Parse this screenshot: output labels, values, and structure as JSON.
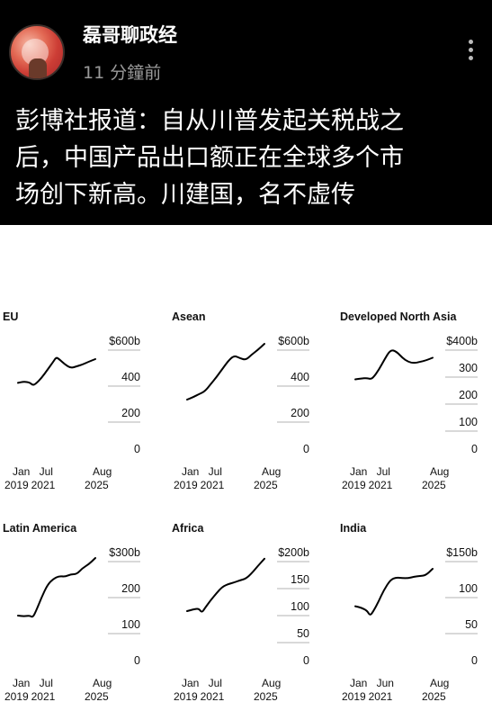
{
  "post": {
    "author": "磊哥聊政经",
    "time": "11 分鐘前",
    "text_lines": [
      "彭博社报道：自从川普发起关税战之",
      "后，中国产品出口额正在全球多个市",
      "场创下新高。川建国，名不虚传"
    ]
  },
  "chart_data": [
    {
      "type": "line",
      "title": "EU",
      "y_ticks": [
        "$600b",
        "400",
        "200",
        "0"
      ],
      "ylim": [
        0,
        600
      ],
      "x_ticks": [
        [
          "Jan",
          "2019"
        ],
        [
          "Jul",
          "2021"
        ],
        [
          "Aug",
          "2025"
        ]
      ],
      "x": [
        "2019-01",
        "2019-07",
        "2020-01",
        "2020-04",
        "2020-07",
        "2021-01",
        "2021-07",
        "2022-01",
        "2022-04",
        "2022-07",
        "2023-01",
        "2023-07",
        "2024-01",
        "2024-07",
        "2025-01",
        "2025-08"
      ],
      "values": [
        378,
        385,
        380,
        365,
        372,
        405,
        450,
        495,
        520,
        510,
        480,
        460,
        470,
        480,
        495,
        510
      ]
    },
    {
      "type": "line",
      "title": "Asean",
      "y_ticks": [
        "$600b",
        "400",
        "200",
        "0"
      ],
      "ylim": [
        0,
        600
      ],
      "x_ticks": [
        [
          "Jan",
          "2019"
        ],
        [
          "Jul",
          "2021"
        ],
        [
          "Aug",
          "2025"
        ]
      ],
      "x": [
        "2019-01",
        "2019-07",
        "2020-01",
        "2020-07",
        "2021-01",
        "2021-07",
        "2022-01",
        "2022-07",
        "2023-01",
        "2023-07",
        "2024-01",
        "2024-07",
        "2025-01",
        "2025-08"
      ],
      "values": [
        285,
        298,
        315,
        330,
        370,
        410,
        455,
        500,
        530,
        515,
        505,
        535,
        560,
        595
      ]
    },
    {
      "type": "line",
      "title": "Developed North Asia",
      "y_ticks": [
        "$400b",
        "300",
        "200",
        "100",
        "0"
      ],
      "ylim": [
        0,
        400
      ],
      "x_ticks": [
        [
          "Jan",
          "2019"
        ],
        [
          "Jul",
          "2021"
        ],
        [
          "Aug",
          "2025"
        ]
      ],
      "x": [
        "2019-01",
        "2019-07",
        "2020-01",
        "2020-04",
        "2020-07",
        "2021-01",
        "2021-07",
        "2022-01",
        "2022-07",
        "2023-01",
        "2023-07",
        "2024-01",
        "2024-07",
        "2025-01",
        "2025-08"
      ],
      "values": [
        265,
        268,
        270,
        266,
        270,
        300,
        340,
        375,
        368,
        345,
        330,
        325,
        330,
        335,
        345
      ]
    },
    {
      "type": "line",
      "title": "Latin America",
      "y_ticks": [
        "$300b",
        "200",
        "100",
        "0"
      ],
      "ylim": [
        0,
        300
      ],
      "x_ticks": [
        [
          "Jan",
          "2019"
        ],
        [
          "Jul",
          "2021"
        ],
        [
          "Aug",
          "2025"
        ]
      ],
      "x": [
        "2019-01",
        "2019-07",
        "2020-01",
        "2020-04",
        "2020-07",
        "2021-01",
        "2021-07",
        "2022-01",
        "2022-07",
        "2023-01",
        "2023-07",
        "2024-01",
        "2024-07",
        "2025-01",
        "2025-08"
      ],
      "values": [
        130,
        128,
        130,
        125,
        140,
        180,
        215,
        232,
        240,
        238,
        245,
        245,
        262,
        272,
        290
      ]
    },
    {
      "type": "line",
      "title": "Africa",
      "y_ticks": [
        "$200b",
        "150",
        "100",
        "50",
        "0"
      ],
      "ylim": [
        0,
        200
      ],
      "x_ticks": [
        [
          "Jan",
          "2019"
        ],
        [
          "Jul",
          "2021"
        ],
        [
          "Aug",
          "2025"
        ]
      ],
      "x": [
        "2019-01",
        "2019-07",
        "2020-01",
        "2020-04",
        "2020-07",
        "2021-01",
        "2021-07",
        "2022-01",
        "2022-07",
        "2023-01",
        "2023-07",
        "2024-01",
        "2024-07",
        "2025-01",
        "2025-08"
      ],
      "values": [
        95,
        98,
        100,
        92,
        100,
        115,
        128,
        140,
        145,
        148,
        152,
        155,
        165,
        178,
        192
      ]
    },
    {
      "type": "line",
      "title": "India",
      "y_ticks": [
        "$150b",
        "100",
        "50",
        "0"
      ],
      "ylim": [
        0,
        150
      ],
      "x_ticks": [
        [
          "Jan",
          "2019"
        ],
        [
          "Jun",
          "2021"
        ],
        [
          "Aug",
          "2025"
        ]
      ],
      "x": [
        "2019-01",
        "2019-07",
        "2020-01",
        "2020-04",
        "2020-07",
        "2021-01",
        "2021-06",
        "2022-01",
        "2022-07",
        "2023-01",
        "2023-07",
        "2024-01",
        "2024-07",
        "2025-01",
        "2025-08"
      ],
      "values": [
        78,
        76,
        72,
        65,
        70,
        85,
        100,
        115,
        118,
        117,
        117,
        119,
        120,
        121,
        130
      ]
    }
  ]
}
